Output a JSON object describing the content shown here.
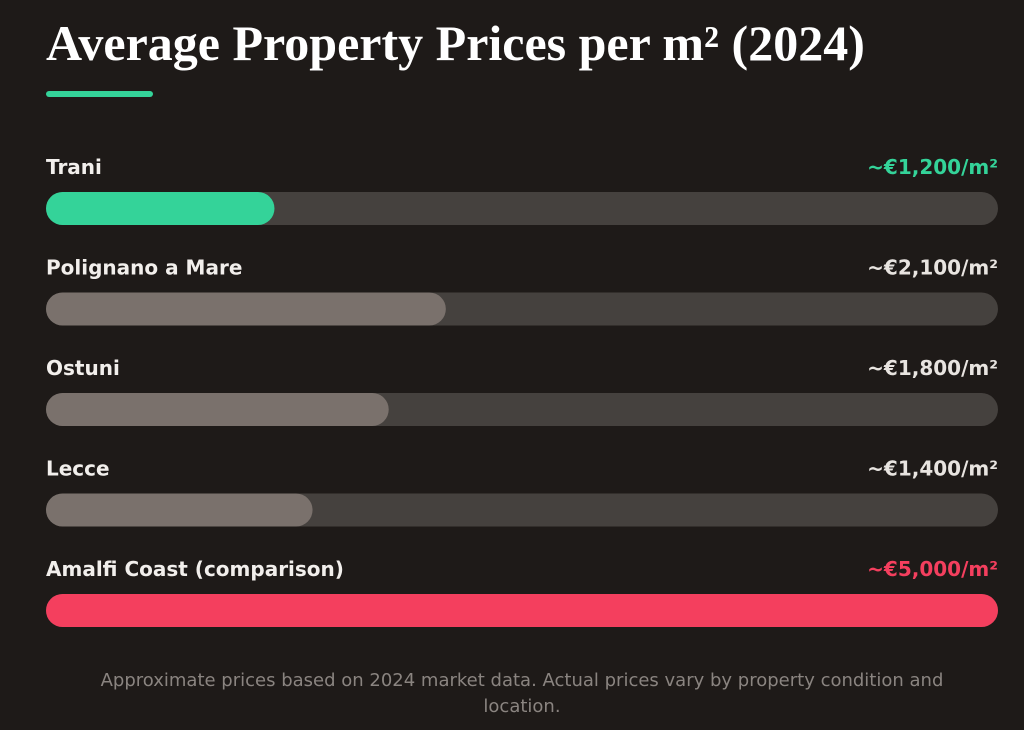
{
  "chart_data": {
    "type": "bar",
    "orientation": "horizontal",
    "title": "Average Property Prices per m² (2024)",
    "categories": [
      "Trani",
      "Polignano a Mare",
      "Ostuni",
      "Lecce",
      "Amalfi Coast (comparison)"
    ],
    "values": [
      1200,
      2100,
      1800,
      1400,
      5000
    ],
    "value_labels": [
      "~€1,200/m²",
      "~€2,100/m²",
      "~€1,800/m²",
      "~€1,400/m²",
      "~€5,000/m²"
    ],
    "colors": [
      "#34d399",
      "#7a716c",
      "#7a716c",
      "#7a716c",
      "#f43f5e"
    ],
    "label_colors": [
      "#34d399",
      "#e8e4e0",
      "#e8e4e0",
      "#e8e4e0",
      "#f43f5e"
    ],
    "xlim": [
      0,
      5000
    ],
    "note": "Approximate prices based on 2024 market data. Actual prices vary by property condition and location."
  }
}
